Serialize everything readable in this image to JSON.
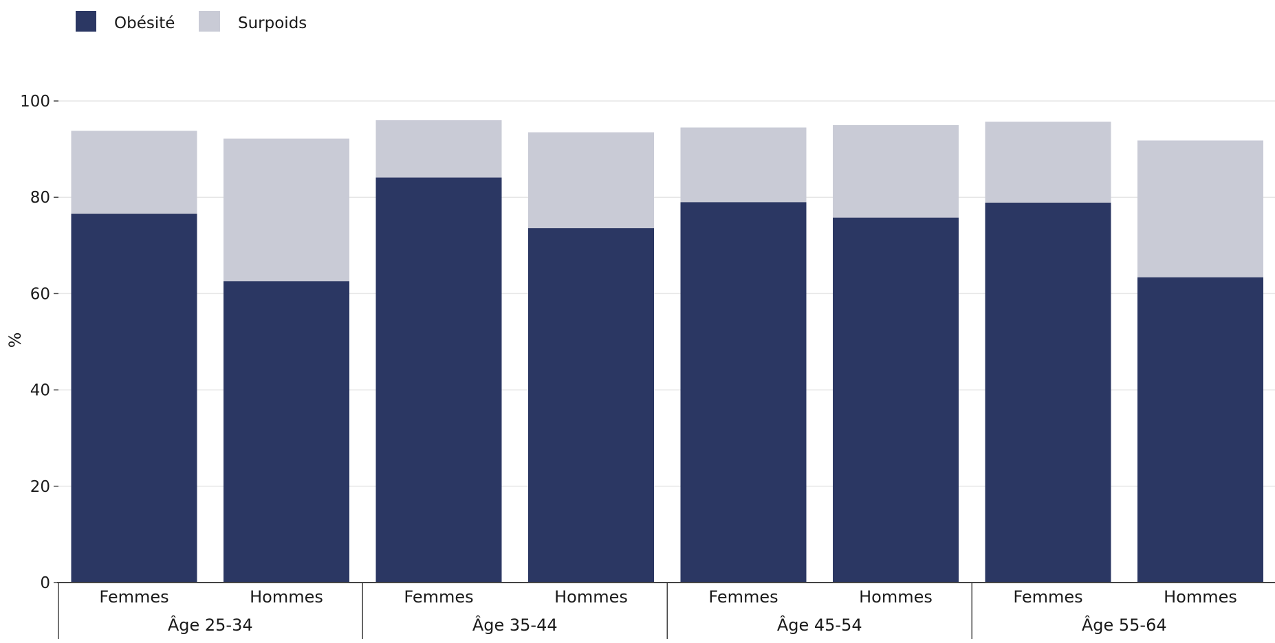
{
  "chart_data": {
    "type": "bar",
    "stacked": true,
    "ylabel": "%",
    "ylim": [
      0,
      100
    ],
    "yticks": [
      0,
      20,
      40,
      60,
      80,
      100
    ],
    "grid": true,
    "legend_position": "top-left",
    "groups": [
      "Âge 25-34",
      "Âge 35-44",
      "Âge 45-54",
      "Âge 55-64"
    ],
    "subcategories": [
      "Femmes",
      "Hommes"
    ],
    "categories": [
      "Âge 25-34 Femmes",
      "Âge 25-34 Hommes",
      "Âge 35-44 Femmes",
      "Âge 35-44 Hommes",
      "Âge 45-54 Femmes",
      "Âge 45-54 Hommes",
      "Âge 55-64 Femmes",
      "Âge 55-64 Hommes"
    ],
    "series": [
      {
        "name": "Obésité",
        "color": "#2b3763",
        "values": [
          76.6,
          62.6,
          84.1,
          73.6,
          79.0,
          75.8,
          78.9,
          63.4
        ]
      },
      {
        "name": "Surpoids",
        "color": "#c9cbd6",
        "values": [
          17.2,
          29.6,
          11.9,
          19.9,
          15.5,
          19.2,
          16.8,
          28.4
        ]
      }
    ]
  }
}
